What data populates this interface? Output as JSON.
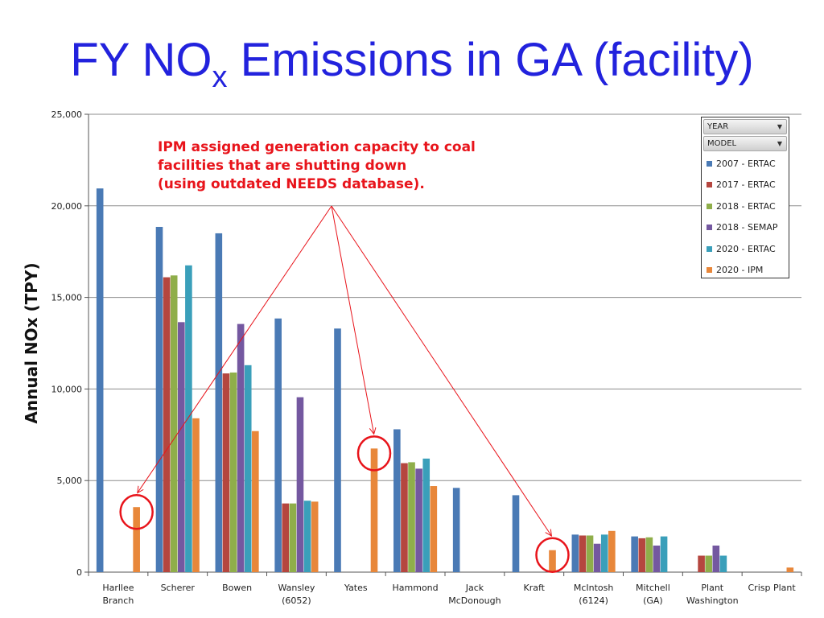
{
  "slide": {
    "title_main": "FY NO",
    "title_sub": "x",
    "title_rest": " Emissions in GA (facility)",
    "title_color": "#2222dd"
  },
  "annotation": {
    "lines": [
      "IPM assigned generation capacity to coal",
      "facilities that are shutting down",
      "(using outdated NEEDS database)."
    ],
    "color": "#e8141b"
  },
  "legend": {
    "filters": [
      {
        "label": "YEAR",
        "icon": "dropdown-arrow-icon"
      },
      {
        "label": "MODEL",
        "icon": "dropdown-arrow-icon"
      }
    ]
  },
  "chart_data": {
    "type": "bar",
    "ylabel": "Annual NOx (TPY)",
    "xlabel": "",
    "ylim": [
      0,
      25000
    ],
    "yticks": [
      0,
      5000,
      10000,
      15000,
      20000,
      25000
    ],
    "ytick_labels": [
      "0",
      "5,000",
      "10,000",
      "15,000",
      "20,000",
      "25,000"
    ],
    "grid": true,
    "legend_position": "top-right",
    "categories": [
      "Harllee Branch",
      "Scherer",
      "Bowen",
      "Wansley (6052)",
      "Yates",
      "Hammond",
      "Jack McDonough",
      "Kraft",
      "McIntosh (6124)",
      "Mitchell (GA)",
      "Plant Washington",
      "Crisp Plant"
    ],
    "category_label_lines": [
      [
        "Harllee",
        "Branch"
      ],
      [
        "Scherer"
      ],
      [
        "Bowen"
      ],
      [
        "Wansley",
        "(6052)"
      ],
      [
        "Yates"
      ],
      [
        "Hammond"
      ],
      [
        "Jack",
        "McDonough"
      ],
      [
        "Kraft"
      ],
      [
        "McIntosh",
        "(6124)"
      ],
      [
        "Mitchell",
        "(GA)"
      ],
      [
        "Plant",
        "Washington"
      ],
      [
        "Crisp Plant"
      ]
    ],
    "series": [
      {
        "name": "2007 - ERTAC",
        "color": "#4a7ab5",
        "values": [
          20950,
          18850,
          18500,
          13850,
          13300,
          7800,
          4600,
          4200,
          2050,
          1950,
          null,
          null
        ]
      },
      {
        "name": "2017 - ERTAC",
        "color": "#b5463f",
        "values": [
          null,
          16100,
          10850,
          3750,
          null,
          5950,
          null,
          null,
          2000,
          1850,
          900,
          null
        ]
      },
      {
        "name": "2018 - ERTAC",
        "color": "#8fae4a",
        "values": [
          null,
          16200,
          10900,
          3750,
          null,
          6000,
          null,
          null,
          2000,
          1900,
          900,
          null
        ]
      },
      {
        "name": "2018 - SEMAP",
        "color": "#7458a0",
        "values": [
          null,
          13650,
          13550,
          9550,
          null,
          5650,
          null,
          null,
          1550,
          1450,
          1450,
          null
        ]
      },
      {
        "name": "2020 - ERTAC",
        "color": "#3a9fba",
        "values": [
          null,
          16750,
          11300,
          3900,
          null,
          6200,
          null,
          null,
          2050,
          1950,
          900,
          null
        ]
      },
      {
        "name": "2020 - IPM",
        "color": "#e8873a",
        "values": [
          3550,
          8400,
          7700,
          3850,
          6750,
          4700,
          null,
          1200,
          2250,
          null,
          null,
          250
        ]
      }
    ],
    "highlighted_points": [
      {
        "category": "Harllee Branch",
        "series": "2020 - IPM"
      },
      {
        "category": "Yates",
        "series": "2020 - IPM"
      },
      {
        "category": "Kraft",
        "series": "2020 - IPM"
      }
    ]
  }
}
